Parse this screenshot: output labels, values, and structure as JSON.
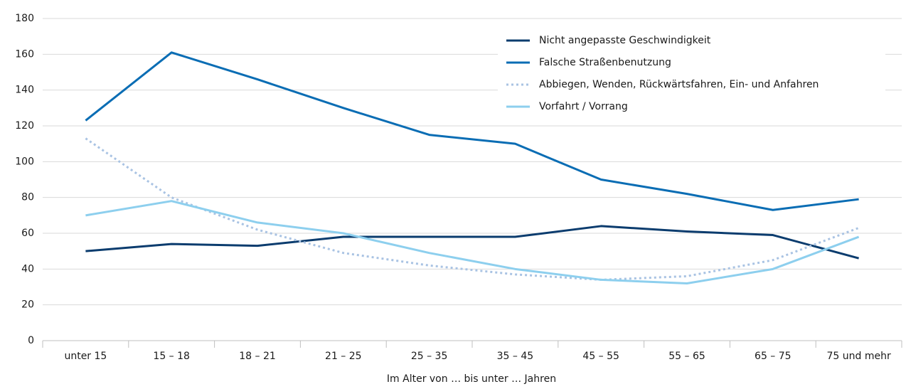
{
  "chart_data": {
    "type": "line",
    "xlabel": "Im Alter von … bis unter … Jahren",
    "categories": [
      "unter 15",
      "15 – 18",
      "18 – 21",
      "21 – 25",
      "25 – 35",
      "35 – 45",
      "45 – 55",
      "55 – 65",
      "65 – 75",
      "75 und mehr"
    ],
    "series": [
      {
        "name": "Nicht angepasste Geschwindigkeit",
        "color": "#0b3c6e",
        "dash": false,
        "values": [
          50,
          54,
          53,
          58,
          58,
          58,
          64,
          61,
          59,
          46
        ]
      },
      {
        "name": "Falsche Straßenbenutzung",
        "color": "#0a6db4",
        "dash": false,
        "values": [
          123,
          161,
          146,
          130,
          115,
          110,
          90,
          82,
          73,
          79
        ]
      },
      {
        "name": "Abbiegen, Wenden, Rückwärtsfahren, Ein- und Anfahren",
        "color": "#a9c3e3",
        "dash": true,
        "values": [
          113,
          80,
          62,
          49,
          42,
          37,
          34,
          36,
          45,
          63
        ]
      },
      {
        "name": "Vorfahrt / Vorrang",
        "color": "#8dcfee",
        "dash": false,
        "values": [
          70,
          78,
          66,
          60,
          49,
          40,
          34,
          32,
          40,
          58
        ]
      }
    ],
    "ylim": [
      0,
      180
    ],
    "yticks": [
      0,
      20,
      40,
      60,
      80,
      100,
      120,
      140,
      160,
      180
    ],
    "grid": true,
    "legend": "top-right"
  }
}
